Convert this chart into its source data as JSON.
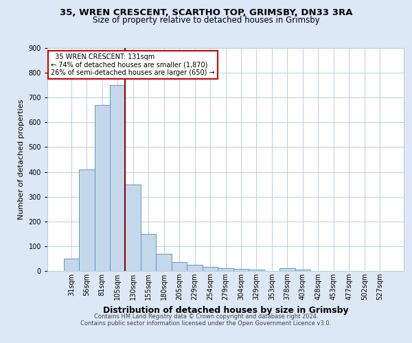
{
  "title1": "35, WREN CRESCENT, SCARTHO TOP, GRIMSBY, DN33 3RA",
  "title2": "Size of property relative to detached houses in Grimsby",
  "xlabel": "Distribution of detached houses by size in Grimsby",
  "ylabel": "Number of detached properties",
  "bar_labels": [
    "31sqm",
    "56sqm",
    "81sqm",
    "105sqm",
    "130sqm",
    "155sqm",
    "180sqm",
    "205sqm",
    "229sqm",
    "254sqm",
    "279sqm",
    "304sqm",
    "329sqm",
    "353sqm",
    "378sqm",
    "403sqm",
    "428sqm",
    "453sqm",
    "477sqm",
    "502sqm",
    "527sqm"
  ],
  "bar_heights": [
    50,
    410,
    670,
    750,
    350,
    150,
    70,
    35,
    25,
    18,
    10,
    8,
    5,
    0,
    10,
    5,
    0,
    0,
    0,
    0,
    0
  ],
  "bar_color": "#c5d8eb",
  "bar_edge_color": "#5a9abf",
  "red_line_x": 4,
  "red_line_color": "#8b0000",
  "annotation_line1": "  35 WREN CRESCENT: 131sqm",
  "annotation_line2": "← 74% of detached houses are smaller (1,870)",
  "annotation_line3": "26% of semi-detached houses are larger (650) →",
  "annotation_box_fc": "white",
  "annotation_box_ec": "#cc0000",
  "ylim": [
    0,
    900
  ],
  "yticks": [
    0,
    100,
    200,
    300,
    400,
    500,
    600,
    700,
    800,
    900
  ],
  "footer_line1": "Contains HM Land Registry data © Crown copyright and database right 2024.",
  "footer_line2": "Contains public sector information licensed under the Open Government Licence v3.0.",
  "bg_color": "#dce8f5",
  "plot_bg_color": "#ffffff",
  "grid_color": "#b8cfe0",
  "title_fontsize": 9.5,
  "subtitle_fontsize": 8.5,
  "ylabel_fontsize": 8,
  "xlabel_fontsize": 9,
  "tick_fontsize": 7,
  "footer_fontsize": 6
}
